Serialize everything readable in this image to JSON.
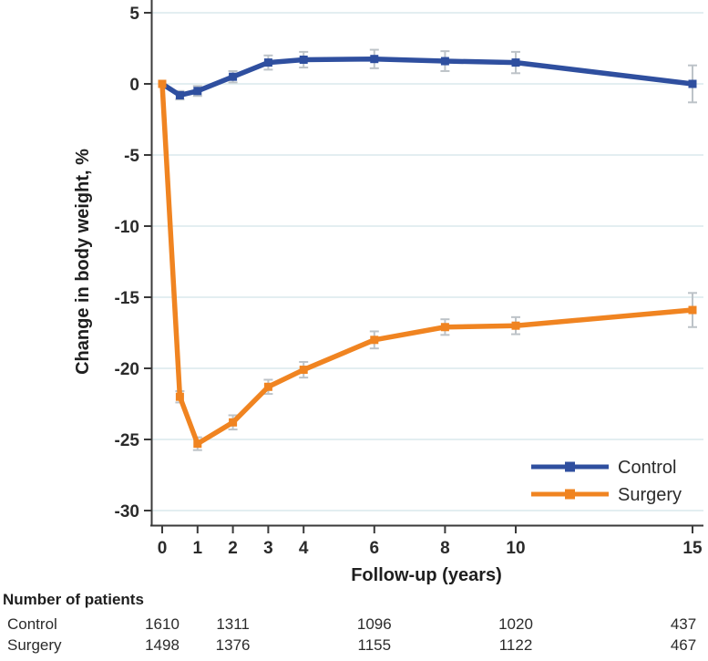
{
  "chart_data": {
    "type": "line",
    "title": "",
    "xlabel": "Follow-up (years)",
    "ylabel": "Change in body weight, %",
    "x_ticks": [
      0,
      1,
      2,
      3,
      4,
      6,
      8,
      10,
      15
    ],
    "y_ticks": [
      5,
      0,
      -5,
      -10,
      -15,
      -20,
      -25,
      -30
    ],
    "xlim": [
      0,
      15
    ],
    "ylim": [
      -30,
      5
    ],
    "grid": "horizontal",
    "legend_position": "inside-bottom-right",
    "x": [
      0,
      0.5,
      1,
      2,
      3,
      4,
      6,
      8,
      10,
      15
    ],
    "series": [
      {
        "name": "Control",
        "color": "#2f4f9f",
        "values": [
          0,
          -0.8,
          -0.5,
          0.5,
          1.5,
          1.7,
          1.75,
          1.6,
          1.5,
          0
        ],
        "errors": [
          0,
          0.3,
          0.35,
          0.4,
          0.5,
          0.55,
          0.65,
          0.7,
          0.75,
          1.3
        ]
      },
      {
        "name": "Surgery",
        "color": "#f08421",
        "values": [
          0,
          -22,
          -25.3,
          -23.8,
          -21.3,
          -20.1,
          -18.0,
          -17.1,
          -17.0,
          -15.9
        ],
        "errors": [
          0,
          0.4,
          0.45,
          0.5,
          0.5,
          0.55,
          0.6,
          0.55,
          0.6,
          1.2
        ]
      }
    ],
    "colors": {
      "grid": "#e3eef1",
      "axis": "#3a3a3a",
      "error_bar": "#bdc3c8"
    }
  },
  "patients": {
    "title": "Number of patients",
    "years": [
      0,
      2,
      6,
      10,
      15
    ],
    "rows": [
      {
        "label": "Control",
        "values": [
          "1610",
          "1311",
          "1096",
          "1020",
          "437"
        ]
      },
      {
        "label": "Surgery",
        "values": [
          "1498",
          "1376",
          "1155",
          "1122",
          "467"
        ]
      }
    ]
  }
}
